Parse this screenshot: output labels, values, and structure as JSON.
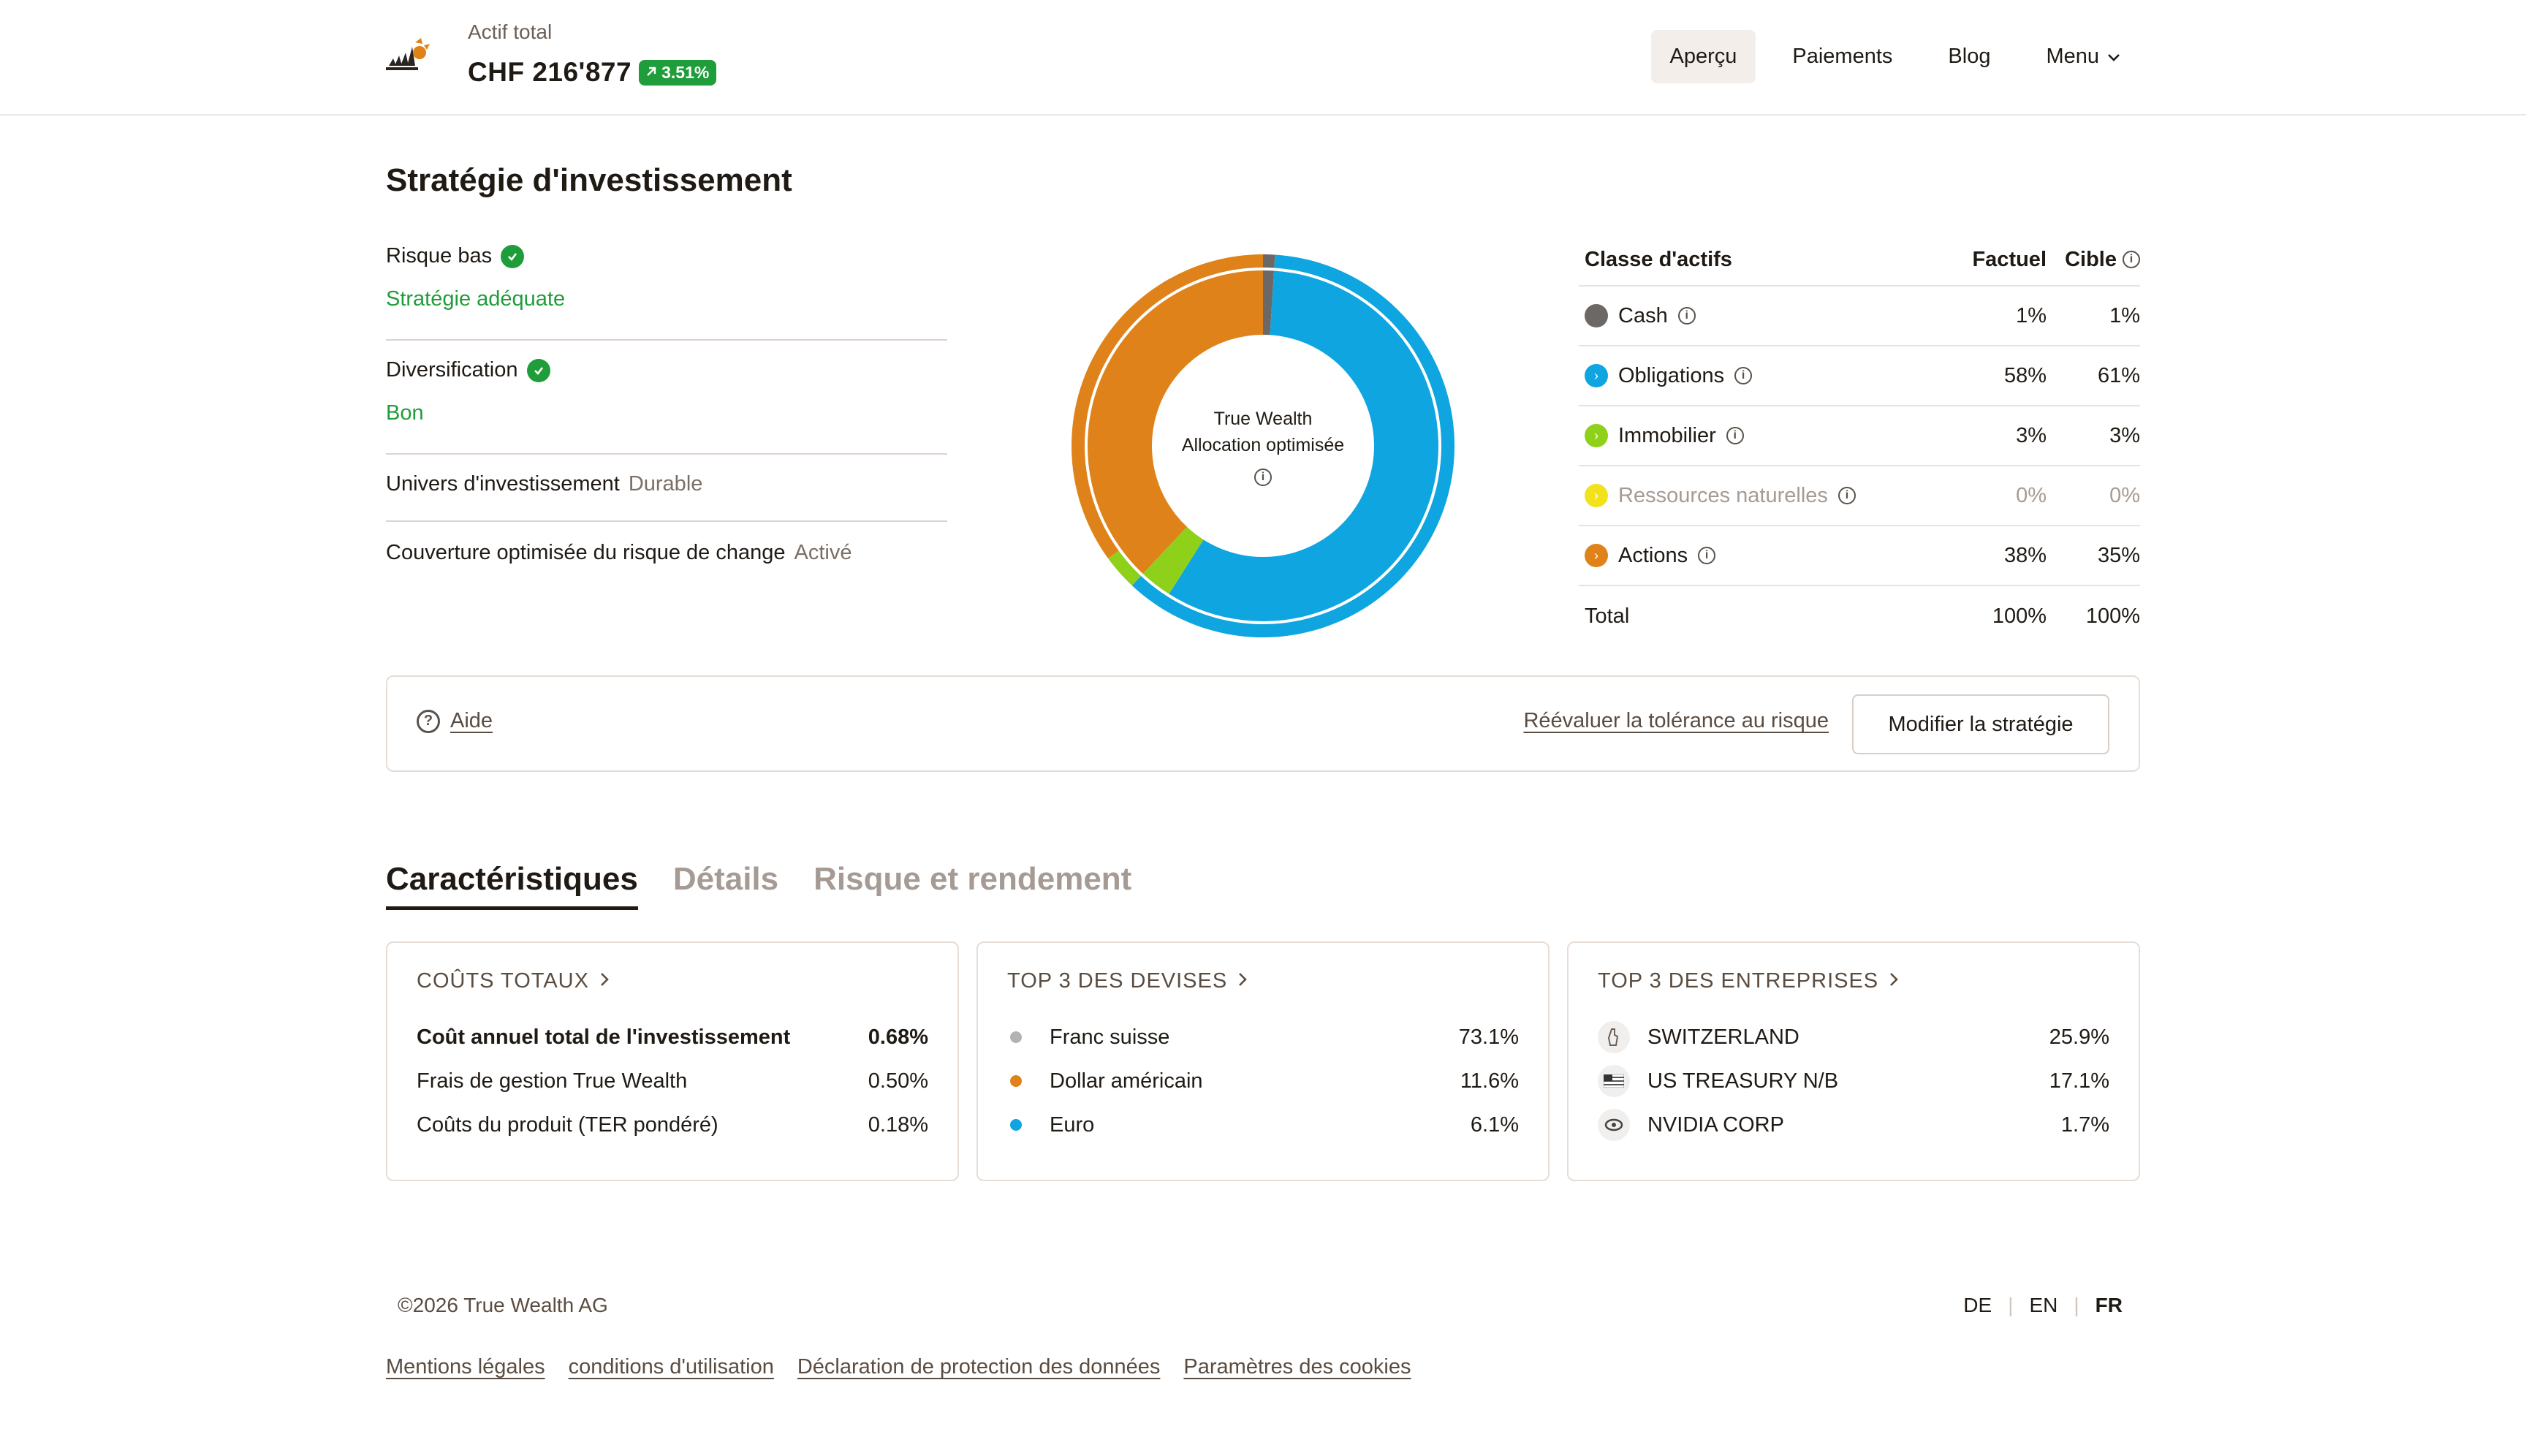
{
  "header": {
    "total_label": "Actif total",
    "total_value": "CHF 216'877",
    "performance": "3.51%",
    "nav": [
      {
        "label": "Aperçu",
        "active": true
      },
      {
        "label": "Paiements",
        "active": false
      },
      {
        "label": "Blog",
        "active": false
      },
      {
        "label": "Menu",
        "active": false
      }
    ]
  },
  "strategy": {
    "title": "Stratégie d'investissement",
    "risk_label": "Risque bas",
    "risk_status": "Stratégie adéquate",
    "diversification_label": "Diversification",
    "diversification_status": "Bon",
    "universe_label": "Univers d'investissement",
    "universe_value": "Durable",
    "hedging_label": "Couverture optimisée du risque de change",
    "hedging_value": "Activé",
    "donut_line1": "True Wealth",
    "donut_line2": "Allocation optimisée"
  },
  "allocation": {
    "headers": {
      "name": "Classe d'actifs",
      "actual": "Factuel",
      "target": "Cible"
    },
    "rows": [
      {
        "name": "Cash",
        "actual": "1%",
        "target": "1%",
        "color": "#6b6866",
        "actual_value": 1,
        "target_value": 1
      },
      {
        "name": "Obligations",
        "actual": "58%",
        "target": "61%",
        "color": "#0ea5e0",
        "actual_value": 58,
        "target_value": 61
      },
      {
        "name": "Immobilier",
        "actual": "3%",
        "target": "3%",
        "color": "#8fd11a",
        "actual_value": 3,
        "target_value": 3
      },
      {
        "name": "Ressources naturelles",
        "actual": "0%",
        "target": "0%",
        "color": "#f2e21b",
        "actual_value": 0,
        "target_value": 0
      },
      {
        "name": "Actions",
        "actual": "38%",
        "target": "35%",
        "color": "#e0821a",
        "actual_value": 38,
        "target_value": 35
      }
    ],
    "total": {
      "name": "Total",
      "actual": "100%",
      "target": "100%"
    }
  },
  "actions": {
    "help": "Aide",
    "reevaluate": "Réévaluer la tolérance au risque",
    "modify": "Modifier la stratégie"
  },
  "tabs": [
    {
      "label": "Caractéristiques",
      "active": true
    },
    {
      "label": "Détails",
      "active": false
    },
    {
      "label": "Risque et rendement",
      "active": false
    }
  ],
  "costs": {
    "title": "COÛTS TOTAUX",
    "rows": [
      {
        "label": "Coût annuel total de l'investissement",
        "value": "0.68%"
      },
      {
        "label": "Frais de gestion True Wealth",
        "value": "0.50%"
      },
      {
        "label": "Coûts du produit (TER pondéré)",
        "value": "0.18%"
      }
    ]
  },
  "currencies": {
    "title": "TOP 3 DES DEVISES",
    "rows": [
      {
        "label": "Franc suisse",
        "value": "73.1%",
        "color": "#b3b3b3"
      },
      {
        "label": "Dollar américain",
        "value": "11.6%",
        "color": "#e0821a"
      },
      {
        "label": "Euro",
        "value": "6.1%",
        "color": "#0ea5e0"
      }
    ]
  },
  "companies": {
    "title": "TOP 3 DES ENTREPRISES",
    "rows": [
      {
        "label": "SWITZERLAND",
        "value": "25.9%",
        "icon": "switzerland-logo-icon"
      },
      {
        "label": "US TREASURY N/B",
        "value": "17.1%",
        "icon": "us-flag-icon"
      },
      {
        "label": "NVIDIA CORP",
        "value": "1.7%",
        "icon": "nvidia-logo-icon"
      }
    ]
  },
  "footer": {
    "copyright": "©2026 True Wealth AG",
    "languages": [
      {
        "label": "DE",
        "active": false
      },
      {
        "label": "EN",
        "active": false
      },
      {
        "label": "FR",
        "active": true
      }
    ],
    "links": [
      "Mentions légales",
      "conditions d'utilisation",
      "Déclaration de protection des données",
      "Paramètres des cookies"
    ]
  }
}
